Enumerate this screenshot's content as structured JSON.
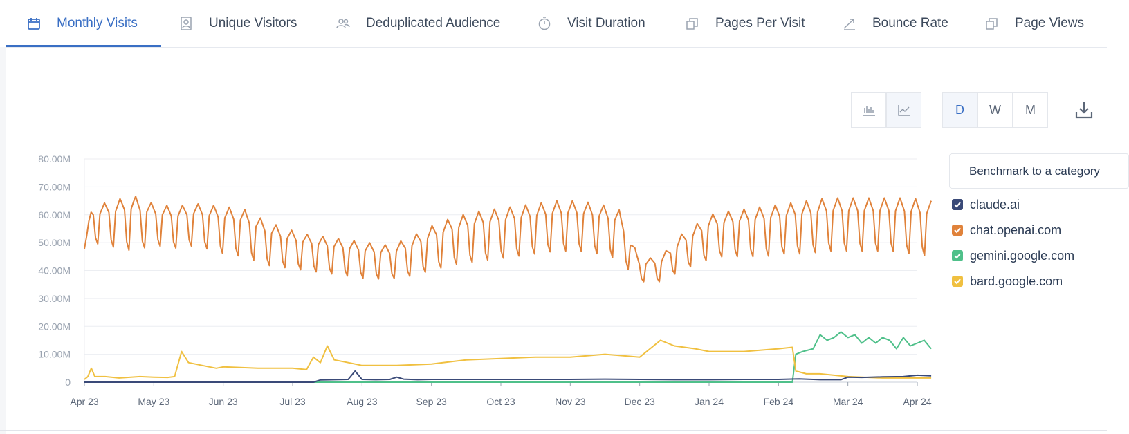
{
  "tabs": [
    {
      "label": "Monthly Visits",
      "icon": "calendar-icon"
    },
    {
      "label": "Unique Visitors",
      "icon": "user-card-icon"
    },
    {
      "label": "Deduplicated Audience",
      "icon": "users-icon"
    },
    {
      "label": "Visit Duration",
      "icon": "stopwatch-icon"
    },
    {
      "label": "Pages Per Visit",
      "icon": "pages-icon"
    },
    {
      "label": "Bounce Rate",
      "icon": "trend-icon"
    },
    {
      "label": "Page Views",
      "icon": "pages-icon"
    }
  ],
  "toolbar": {
    "granularity": [
      "D",
      "W",
      "M"
    ],
    "selected": "D"
  },
  "benchmark": {
    "label": "Benchmark to a category"
  },
  "colors": {
    "accent": "#3a6fc4",
    "claude": "#3a4a78",
    "openai": "#e0823a",
    "gemini": "#4fc08a",
    "bard": "#f0c040"
  },
  "chart_data": {
    "type": "line",
    "title": "",
    "xlabel": "",
    "ylabel": "",
    "ylim": [
      0,
      80
    ],
    "y_unit": "M",
    "y_ticks": [
      "0",
      "10.00M",
      "20.00M",
      "30.00M",
      "40.00M",
      "50.00M",
      "60.00M",
      "70.00M",
      "80.00M"
    ],
    "x_ticks": [
      "Apr 23",
      "May 23",
      "Jun 23",
      "Jul 23",
      "Aug 23",
      "Sep 23",
      "Oct 23",
      "Nov 23",
      "Dec 23",
      "Jan 24",
      "Feb 24",
      "Mar 24",
      "Apr 24"
    ],
    "series": [
      {
        "name": "claude.ai",
        "color": "#3a4a78",
        "x": [
          0,
          3.3,
          3.4,
          3.6,
          3.8,
          3.9,
          4,
          4.2,
          4.4,
          4.5,
          4.6,
          4.8,
          5,
          5.5,
          6,
          6.5,
          7,
          7.5,
          8,
          8.5,
          9,
          9.5,
          10,
          10.3,
          10.6,
          10.9,
          11,
          11.2,
          11.5,
          11.8,
          12,
          12.2
        ],
        "values": [
          0,
          0,
          0.8,
          0.9,
          1.0,
          4.0,
          1.0,
          0.9,
          1.0,
          1.8,
          1.1,
          0.9,
          1.0,
          1.0,
          1.0,
          1.0,
          1.0,
          1.1,
          1.0,
          0.9,
          0.9,
          1.0,
          1.0,
          1.2,
          0.9,
          0.9,
          1.8,
          1.7,
          1.9,
          2.0,
          2.5,
          2.3
        ]
      },
      {
        "name": "chat.openai.com",
        "color": "#e0823a",
        "x": [
          0,
          0.1,
          0.7,
          1.0,
          1.3,
          1.6,
          2.0,
          2.3,
          2.6,
          2.9,
          3.2,
          3.5,
          3.8,
          4.1,
          4.4,
          4.7,
          5.0,
          5.3,
          5.6,
          5.9,
          6.2,
          6.5,
          6.8,
          7.1,
          7.4,
          7.7,
          8.0,
          8.3,
          8.6,
          8.9,
          9.0,
          9.2,
          9.5,
          9.8,
          10.1,
          10.4,
          10.7,
          11.0,
          11.3,
          11.6,
          11.9,
          12.2
        ],
        "hi": [
          48,
          63,
          67,
          64,
          63,
          64,
          63,
          62,
          58,
          55,
          53,
          52,
          51,
          50,
          49,
          52,
          56,
          59,
          61,
          62,
          63,
          64,
          65,
          65,
          64,
          62,
          44,
          45,
          53,
          58,
          60,
          61,
          62,
          63,
          64,
          65,
          66,
          66,
          66,
          66,
          66,
          65
        ],
        "lo": [
          47,
          50,
          47,
          49,
          48,
          49,
          46,
          45,
          42,
          41,
          40,
          39,
          38,
          37,
          37,
          38,
          40,
          42,
          43,
          44,
          45,
          46,
          47,
          47,
          46,
          44,
          36,
          36,
          40,
          43,
          44,
          45,
          45,
          45,
          46,
          46,
          47,
          47,
          47,
          47,
          46,
          45
        ]
      },
      {
        "name": "gemini.google.com",
        "color": "#4fc08a",
        "x": [
          0,
          10.2,
          10.25,
          10.35,
          10.5,
          10.6,
          10.7,
          10.8,
          10.9,
          11.0,
          11.1,
          11.2,
          11.3,
          11.4,
          11.5,
          11.6,
          11.7,
          11.8,
          11.9,
          12.0,
          12.1,
          12.2
        ],
        "values": [
          0,
          0,
          10,
          11,
          12,
          17,
          15,
          16,
          18,
          16,
          17,
          14,
          16,
          14,
          16,
          15,
          12,
          16,
          13,
          14,
          15,
          12
        ]
      },
      {
        "name": "bard.google.com",
        "color": "#f0c040",
        "x": [
          0,
          0.05,
          0.1,
          0.15,
          0.3,
          0.5,
          0.8,
          1.0,
          1.2,
          1.3,
          1.4,
          1.5,
          1.7,
          1.9,
          2.0,
          2.5,
          3.0,
          3.2,
          3.3,
          3.4,
          3.5,
          3.6,
          3.8,
          4.0,
          4.5,
          5.0,
          5.5,
          6.0,
          6.5,
          7.0,
          7.5,
          8.0,
          8.3,
          8.5,
          8.8,
          9.0,
          9.5,
          10.0,
          10.2,
          10.25,
          10.4,
          10.6,
          10.8,
          11.0,
          11.5,
          12.0,
          12.2
        ],
        "values": [
          1,
          2,
          5,
          2,
          2,
          1.5,
          2,
          1.8,
          1.7,
          2,
          11,
          7,
          6,
          5,
          5.5,
          5,
          5,
          4.5,
          9,
          7,
          13,
          8,
          7,
          6,
          6,
          6.5,
          8,
          8.5,
          9,
          9,
          10,
          9,
          15,
          13,
          12,
          11,
          11,
          12,
          12.5,
          4,
          3,
          3,
          2.5,
          2,
          1.5,
          1.5,
          1.5
        ]
      }
    ]
  }
}
